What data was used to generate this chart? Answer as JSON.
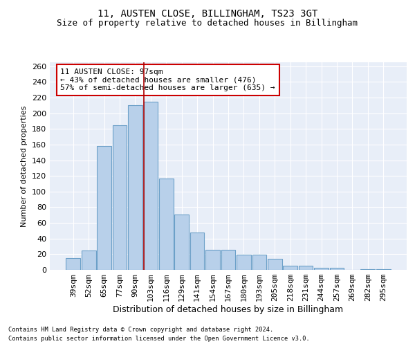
{
  "title1": "11, AUSTEN CLOSE, BILLINGHAM, TS23 3GT",
  "title2": "Size of property relative to detached houses in Billingham",
  "xlabel": "Distribution of detached houses by size in Billingham",
  "ylabel": "Number of detached properties",
  "categories": [
    "39sqm",
    "52sqm",
    "65sqm",
    "77sqm",
    "90sqm",
    "103sqm",
    "116sqm",
    "129sqm",
    "141sqm",
    "154sqm",
    "167sqm",
    "180sqm",
    "193sqm",
    "205sqm",
    "218sqm",
    "231sqm",
    "244sqm",
    "257sqm",
    "269sqm",
    "282sqm",
    "295sqm"
  ],
  "values": [
    15,
    25,
    158,
    185,
    210,
    215,
    117,
    71,
    48,
    26,
    26,
    19,
    19,
    14,
    5,
    5,
    3,
    3,
    0,
    1,
    1
  ],
  "bar_color": "#b8d0ea",
  "bar_edge_color": "#6ca0c8",
  "vline_x": 4.55,
  "vline_color": "#aa0000",
  "annotation_text": "11 AUSTEN CLOSE: 97sqm\n← 43% of detached houses are smaller (476)\n57% of semi-detached houses are larger (635) →",
  "annotation_box_color": "white",
  "annotation_box_edge_color": "#cc0000",
  "footnote1": "Contains HM Land Registry data © Crown copyright and database right 2024.",
  "footnote2": "Contains public sector information licensed under the Open Government Licence v3.0.",
  "background_color": "#e8eef8",
  "grid_color": "#ffffff",
  "ylim": [
    0,
    265
  ],
  "yticks": [
    0,
    20,
    40,
    60,
    80,
    100,
    120,
    140,
    160,
    180,
    200,
    220,
    240,
    260
  ],
  "title1_fontsize": 10,
  "title2_fontsize": 9,
  "ylabel_fontsize": 8,
  "xlabel_fontsize": 9,
  "tick_fontsize": 8,
  "annot_fontsize": 8
}
